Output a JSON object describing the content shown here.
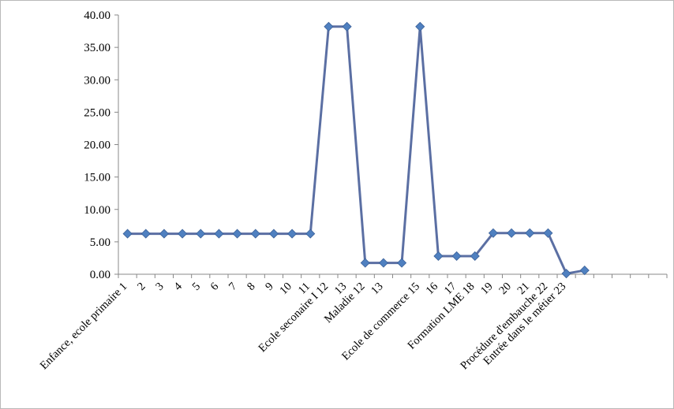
{
  "chart_data": {
    "type": "line",
    "x": [
      "Enfance, ecole primaire 1",
      "2",
      "3",
      "4",
      "5",
      "6",
      "7",
      "8",
      "9",
      "10",
      "11",
      "Ecole seconaire I 12",
      "13",
      "Maladie  12",
      "13",
      "",
      "Ecole de commerce  15",
      "16",
      "17",
      "Formation LME 18",
      "19",
      "20",
      "21",
      "Procédure d'embauche 22",
      "Entrée dans le métier 23",
      "",
      "",
      "",
      "",
      ""
    ],
    "series": [
      {
        "values": [
          6.25,
          6.25,
          6.25,
          6.25,
          6.25,
          6.25,
          6.25,
          6.25,
          6.25,
          6.25,
          6.25,
          38.2,
          38.2,
          1.75,
          1.75,
          1.75,
          38.2,
          2.8,
          2.8,
          2.8,
          6.35,
          6.35,
          6.35,
          6.35,
          0.1,
          0.6,
          null,
          null,
          null,
          null
        ],
        "color": "#5b6fa3"
      }
    ],
    "y_ticks": [
      "0.00",
      "5.00",
      "10.00",
      "15.00",
      "20.00",
      "25.00",
      "30.00",
      "35.00",
      "40.00"
    ],
    "ylim": [
      0,
      40
    ],
    "grid": false,
    "legend": "none",
    "line_color": "#5b6fa3",
    "marker_color": "#4f80c0",
    "axis_color": "#888888"
  }
}
